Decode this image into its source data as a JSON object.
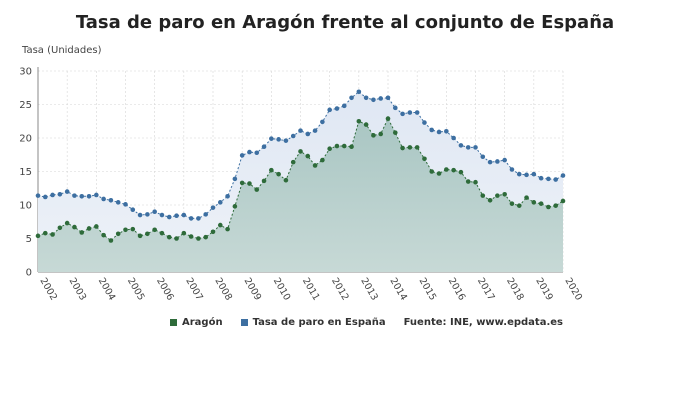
{
  "chart_data": {
    "type": "area",
    "title": "Tasa de paro en Aragón frente al conjunto de España",
    "ylabel": "Tasa (Unidades)",
    "xlabel": "",
    "ylim": [
      0,
      30
    ],
    "yticks": [
      0,
      5,
      10,
      15,
      20,
      25,
      30
    ],
    "x_tick_labels": [
      "2002",
      "2003",
      "2004",
      "2005",
      "2006",
      "2007",
      "2008",
      "2009",
      "2010",
      "2011",
      "2012",
      "2013",
      "2014",
      "2015",
      "2016",
      "2017",
      "2018",
      "2019",
      "2020"
    ],
    "x_range": [
      2002,
      2020
    ],
    "grid": true,
    "legend_position": "bottom",
    "source_text": "Fuente: INE, www.epdata.es",
    "series": [
      {
        "name": "Aragón",
        "color": "#2e6b3a",
        "values": [
          5.4,
          5.8,
          5.6,
          6.6,
          7.3,
          6.7,
          5.9,
          6.5,
          6.8,
          5.5,
          4.7,
          5.7,
          6.3,
          6.4,
          5.4,
          5.7,
          6.3,
          5.8,
          5.2,
          5.0,
          5.8,
          5.3,
          5.0,
          5.2,
          6.0,
          7.0,
          6.4,
          9.8,
          13.3,
          13.2,
          12.3,
          13.6,
          15.2,
          14.6,
          13.7,
          16.4,
          18.0,
          17.3,
          15.9,
          16.7,
          18.4,
          18.8,
          18.8,
          18.7,
          22.5,
          22.0,
          20.4,
          20.6,
          22.9,
          20.8,
          18.5,
          18.6,
          18.6,
          16.9,
          15.0,
          14.7,
          15.3,
          15.2,
          14.9,
          13.5,
          13.4,
          11.4,
          10.7,
          11.4,
          11.6,
          10.2,
          9.9,
          11.1,
          10.4,
          10.2,
          9.7,
          9.9,
          10.6
        ]
      },
      {
        "name": "Tasa de paro en España",
        "color": "#3d6fa1",
        "values": [
          11.4,
          11.2,
          11.5,
          11.6,
          12.0,
          11.4,
          11.3,
          11.3,
          11.5,
          10.9,
          10.7,
          10.4,
          10.1,
          9.3,
          8.5,
          8.6,
          9.0,
          8.5,
          8.2,
          8.4,
          8.5,
          8.0,
          8.0,
          8.6,
          9.6,
          10.4,
          11.3,
          13.9,
          17.4,
          17.9,
          17.8,
          18.7,
          19.9,
          19.8,
          19.6,
          20.3,
          21.1,
          20.6,
          21.1,
          22.4,
          24.2,
          24.4,
          24.8,
          26.0,
          26.9,
          26.0,
          25.7,
          25.9,
          26.0,
          24.5,
          23.6,
          23.8,
          23.8,
          22.3,
          21.2,
          20.9,
          21.0,
          20.0,
          18.9,
          18.6,
          18.6,
          17.2,
          16.4,
          16.5,
          16.7,
          15.3,
          14.6,
          14.5,
          14.6,
          14.0,
          13.9,
          13.8,
          14.4
        ]
      }
    ]
  }
}
